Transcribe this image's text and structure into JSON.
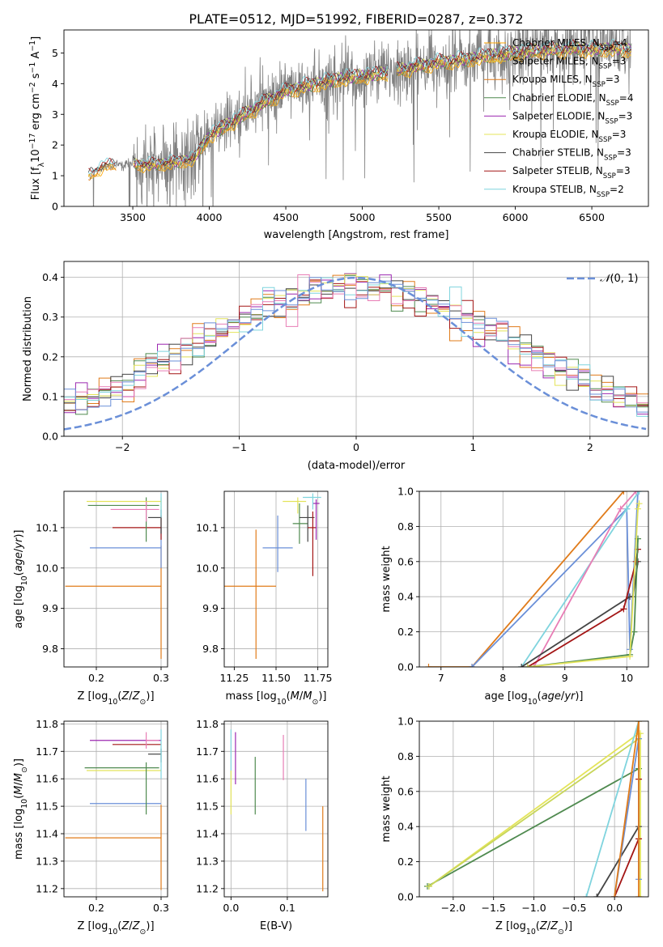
{
  "title": "PLATE=0512, MJD=51992, FIBERID=0287, z=0.372",
  "colors": {
    "Chabrier MILES": "#ffa500",
    "Salpeter MILES": "#e5c23c",
    "Kroupa MILES": "#e07b1a",
    "Chabrier ELODIE": "#4f8a4f",
    "Salpeter ELODIE": "#9b27b0",
    "Kroupa ELODIE": "#e4e45a",
    "Chabrier STELIB": "#444444",
    "Salpeter STELIB": "#a31515",
    "Kroupa STELIB": "#7fd4de",
    "extra_pink": "#e87db5",
    "extra_blue": "#6a8fd8",
    "extra_olive": "#c8d65a",
    "normal_curve": "#6a8fd8"
  },
  "chart_data": [
    {
      "id": "spectrum",
      "type": "line",
      "title": "PLATE=0512, MJD=51992, FIBERID=0287, z=0.372",
      "xlabel": "wavelength [Angstrom, rest frame]",
      "ylabel": "Flux [f_λ 10^-17 erg cm^-2 s^-1 A^-1]",
      "xlim": [
        3050,
        6870
      ],
      "ylim": [
        0,
        5.75
      ],
      "xticks": [
        3500,
        4000,
        4500,
        5000,
        5500,
        6000,
        6500
      ],
      "yticks": [
        0,
        1,
        2,
        3,
        4,
        5
      ],
      "legend_position": "upper right",
      "data_range": [
        3210,
        6760
      ],
      "model_anchors": {
        "x": [
          3210,
          3300,
          3400,
          3500,
          3600,
          3700,
          3800,
          3900,
          4000,
          4100,
          4200,
          4300,
          4400,
          4500,
          4600,
          4700,
          4800,
          4900,
          5000,
          5100,
          5200,
          5300,
          5400,
          5500,
          5600,
          5700,
          5800,
          5900,
          6000,
          6100,
          6200,
          6300,
          6400,
          6500,
          6600,
          6760
        ],
        "y": [
          1.0,
          1.3,
          1.35,
          1.4,
          1.35,
          1.4,
          1.45,
          1.55,
          2.3,
          2.6,
          2.9,
          3.2,
          3.5,
          3.75,
          3.9,
          4.0,
          4.1,
          4.2,
          4.25,
          4.3,
          4.4,
          4.5,
          4.6,
          4.7,
          4.75,
          4.8,
          4.9,
          4.95,
          5.0,
          5.05,
          5.1,
          5.1,
          5.15,
          5.1,
          5.15,
          5.1
        ]
      },
      "legend": [
        {
          "name": "Chabrier MILES",
          "nssp": "4"
        },
        {
          "name": "Salpeter MILES",
          "nssp": "3"
        },
        {
          "name": "Kroupa MILES",
          "nssp": "3"
        },
        {
          "name": "Chabrier ELODIE",
          "nssp": "4"
        },
        {
          "name": "Salpeter ELODIE",
          "nssp": "3"
        },
        {
          "name": "Kroupa ELODIE",
          "nssp": "3"
        },
        {
          "name": "Chabrier STELIB",
          "nssp": "3"
        },
        {
          "name": "Salpeter STELIB",
          "nssp": "3"
        },
        {
          "name": "Kroupa STELIB",
          "nssp": "2"
        }
      ]
    },
    {
      "id": "residuals",
      "type": "histogram",
      "xlabel": "(data-model)/error",
      "ylabel": "Normed distribution",
      "xlim": [
        -2.5,
        2.5
      ],
      "ylim": [
        0,
        0.44
      ],
      "xticks": [
        -2,
        -1,
        0,
        1,
        2
      ],
      "yticks": [
        0.0,
        0.1,
        0.2,
        0.3,
        0.4
      ],
      "grid": true,
      "legend_label": "N(0,1)",
      "bin_width": 0.1,
      "normal": {
        "mean": 0,
        "std": 1
      }
    },
    {
      "id": "age_vs_Z",
      "type": "errorbar",
      "xlabel": "Z [log10(Z/Z⊙)]",
      "ylabel": "age [log10(age/yr)]",
      "xlim": [
        0.15,
        0.31
      ],
      "ylim": [
        9.755,
        10.19
      ],
      "xticks": [
        0.2,
        0.3
      ],
      "yticks": [
        9.8,
        9.9,
        10.0,
        10.1
      ],
      "grid": true,
      "points": [
        {
          "series": "Kroupa MILES",
          "x": 0.3,
          "xerr": [
            0.148,
            0.0
          ],
          "y": 9.955,
          "yerr": [
            0.18,
            0.1
          ]
        },
        {
          "series": "extra_blue",
          "x": 0.3,
          "xerr": [
            0.11,
            0.0
          ],
          "y": 10.05,
          "yerr": [
            0.05,
            0.05
          ]
        },
        {
          "series": "Salpeter STELIB",
          "x": 0.3,
          "xerr": [
            0.075,
            0.0
          ],
          "y": 10.1,
          "yerr": [
            0.03,
            0.03
          ]
        },
        {
          "series": "Chabrier ELODIE",
          "x": 0.277,
          "xerr": [
            0.09,
            0.02
          ],
          "y": 10.155,
          "yerr": [
            0.09,
            0.02
          ]
        },
        {
          "series": "Kroupa ELODIE",
          "x": 0.3,
          "xerr": [
            0.115,
            0.0
          ],
          "y": 10.165,
          "yerr": [
            0.02,
            0.01
          ]
        },
        {
          "series": "extra_pink",
          "x": 0.277,
          "xerr": [
            0.055,
            0.02
          ],
          "y": 10.145,
          "yerr": [
            0.03,
            0.02
          ]
        },
        {
          "series": "Chabrier STELIB",
          "x": 0.3,
          "xerr": [
            0.02,
            0.0
          ],
          "y": 10.125,
          "yerr": [
            0.04,
            0.02
          ]
        },
        {
          "series": "Kroupa STELIB",
          "x": 0.3,
          "xerr": [
            0.0,
            0.0
          ],
          "y": 10.175,
          "yerr": [
            0.05,
            0.01
          ]
        }
      ]
    },
    {
      "id": "age_vs_mass",
      "type": "errorbar",
      "xlabel": "mass [log10(M/M⊙)]",
      "ylabel": "",
      "xlim": [
        11.19,
        11.81
      ],
      "ylim": [
        9.755,
        10.19
      ],
      "xticks": [
        11.25,
        11.5,
        11.75
      ],
      "yticks": [
        9.8,
        9.9,
        10.0,
        10.1
      ],
      "grid": true,
      "points": [
        {
          "series": "Kroupa MILES",
          "x": 11.38,
          "xerr": [
            0.19,
            0.12
          ],
          "y": 9.955,
          "yerr": [
            0.18,
            0.14
          ]
        },
        {
          "series": "extra_blue",
          "x": 11.51,
          "xerr": [
            0.09,
            0.09
          ],
          "y": 10.05,
          "yerr": [
            0.06,
            0.08
          ]
        },
        {
          "series": "Kroupa ELODIE",
          "x": 11.63,
          "xerr": [
            0.09,
            0.05
          ],
          "y": 10.165,
          "yerr": [
            0.03,
            0.01
          ]
        },
        {
          "series": "Chabrier ELODIE",
          "x": 11.64,
          "xerr": [
            0.04,
            0.05
          ],
          "y": 10.11,
          "yerr": [
            0.05,
            0.05
          ]
        },
        {
          "series": "Chabrier STELIB",
          "x": 11.69,
          "xerr": [
            0.05,
            0.04
          ],
          "y": 10.125,
          "yerr": [
            0.06,
            0.03
          ]
        },
        {
          "series": "Salpeter STELIB",
          "x": 11.72,
          "xerr": [
            0.03,
            0.02
          ],
          "y": 10.1,
          "yerr": [
            0.12,
            0.04
          ]
        },
        {
          "series": "Salpeter ELODIE",
          "x": 11.74,
          "xerr": [
            0.02,
            0.02
          ],
          "y": 10.16,
          "yerr": [
            0.09,
            0.01
          ]
        },
        {
          "series": "Kroupa STELIB",
          "x": 11.72,
          "xerr": [
            0.06,
            0.05
          ],
          "y": 10.175,
          "yerr": [
            0.03,
            0.01
          ]
        }
      ]
    },
    {
      "id": "cumweight_age",
      "type": "line",
      "xlabel": "age [log10(age/yr)]",
      "ylabel": "mass weight",
      "xlim": [
        6.65,
        10.35
      ],
      "ylim": [
        0,
        1.0
      ],
      "xticks": [
        7,
        8,
        9,
        10
      ],
      "yticks": [
        0.0,
        0.2,
        0.4,
        0.6,
        0.8,
        1.0
      ],
      "grid": true,
      "series": [
        {
          "name": "Kroupa MILES",
          "x": [
            6.8,
            7.5,
            9.95
          ],
          "y": [
            0.0,
            0.0,
            1.0
          ]
        },
        {
          "name": "extra_blue",
          "x": [
            7.5,
            10.0,
            10.05,
            10.18
          ],
          "y": [
            0.0,
            0.9,
            0.1,
            1.0
          ]
        },
        {
          "name": "Kroupa STELIB",
          "x": [
            8.3,
            10.0,
            10.2
          ],
          "y": [
            0.0,
            0.9,
            1.0
          ]
        },
        {
          "name": "extra_pink",
          "x": [
            8.5,
            9.9,
            10.15
          ],
          "y": [
            0.0,
            0.9,
            1.0
          ]
        },
        {
          "name": "Chabrier STELIB",
          "x": [
            8.3,
            10.05,
            10.1,
            10.18
          ],
          "y": [
            0.0,
            0.4,
            0.4,
            0.6
          ]
        },
        {
          "name": "Salpeter STELIB",
          "x": [
            8.4,
            9.95,
            10.15,
            10.18
          ],
          "y": [
            0.0,
            0.33,
            0.6,
            0.67
          ]
        },
        {
          "name": "Chabrier ELODIE",
          "x": [
            8.4,
            10.05,
            10.12,
            10.18
          ],
          "y": [
            0.0,
            0.07,
            0.2,
            0.73
          ]
        },
        {
          "name": "Kroupa ELODIE",
          "x": [
            8.4,
            10.05,
            10.18,
            10.2
          ],
          "y": [
            0.0,
            0.06,
            0.9,
            0.93
          ]
        }
      ]
    },
    {
      "id": "mass_vs_Z",
      "type": "errorbar",
      "xlabel": "Z [log10(Z/Z⊙)]",
      "ylabel": "mass [log10(M/M⊙)]",
      "xlim": [
        0.15,
        0.31
      ],
      "ylim": [
        11.17,
        11.81
      ],
      "xticks": [
        0.2,
        0.3
      ],
      "yticks": [
        11.2,
        11.3,
        11.4,
        11.5,
        11.6,
        11.7,
        11.8
      ],
      "grid": true,
      "points": [
        {
          "series": "Kroupa MILES",
          "x": 0.3,
          "xerr": [
            0.148,
            0.0
          ],
          "y": 11.385,
          "yerr": [
            0.19,
            0.12
          ]
        },
        {
          "series": "extra_blue",
          "x": 0.3,
          "xerr": [
            0.11,
            0.0
          ],
          "y": 11.51,
          "yerr": [
            0.0,
            0.0
          ]
        },
        {
          "series": "Kroupa ELODIE",
          "x": 0.3,
          "xerr": [
            0.115,
            0.0
          ],
          "y": 11.63,
          "yerr": [
            0.0,
            0.0
          ]
        },
        {
          "series": "Chabrier ELODIE",
          "x": 0.277,
          "xerr": [
            0.095,
            0.02
          ],
          "y": 11.64,
          "yerr": [
            0.17,
            0.02
          ]
        },
        {
          "series": "Salpeter STELIB",
          "x": 0.3,
          "xerr": [
            0.075,
            0.0
          ],
          "y": 11.725,
          "yerr": [
            0.0,
            0.0
          ]
        },
        {
          "series": "Salpeter ELODIE",
          "x": 0.3,
          "xerr": [
            0.11,
            0.0
          ],
          "y": 11.74,
          "yerr": [
            0.0,
            0.0
          ]
        },
        {
          "series": "Chabrier STELIB",
          "x": 0.3,
          "xerr": [
            0.02,
            0.0
          ],
          "y": 11.69,
          "yerr": [
            0.03,
            0.02
          ]
        },
        {
          "series": "extra_pink",
          "x": 0.277,
          "xerr": [
            0.0,
            0.02
          ],
          "y": 11.74,
          "yerr": [
            0.03,
            0.03
          ]
        },
        {
          "series": "Kroupa STELIB",
          "x": 0.3,
          "xerr": [
            0.0,
            0.0
          ],
          "y": 11.7,
          "yerr": [
            0.1,
            0.08
          ]
        }
      ]
    },
    {
      "id": "mass_vs_EBV",
      "type": "errorbar",
      "xlabel": "E(B-V)",
      "ylabel": "",
      "xlim": [
        -0.012,
        0.172
      ],
      "ylim": [
        11.17,
        11.81
      ],
      "xticks": [
        0.0,
        0.1
      ],
      "yticks": [
        11.2,
        11.3,
        11.4,
        11.5,
        11.6,
        11.7,
        11.8
      ],
      "grid": true,
      "points": [
        {
          "series": "Kroupa MILES",
          "x": 0.163,
          "y": 11.345,
          "yerr": [
            0.155,
            0.155
          ]
        },
        {
          "series": "extra_blue",
          "x": 0.133,
          "y": 11.51,
          "yerr": [
            0.1,
            0.09
          ]
        },
        {
          "series": "extra_pink",
          "x": 0.093,
          "y": 11.68,
          "yerr": [
            0.085,
            0.08
          ]
        },
        {
          "series": "Chabrier ELODIE",
          "x": 0.043,
          "y": 11.57,
          "yerr": [
            0.1,
            0.11
          ]
        },
        {
          "series": "Salpeter ELODIE",
          "x": 0.008,
          "y": 11.68,
          "yerr": [
            0.1,
            0.09
          ]
        },
        {
          "series": "Kroupa STELIB",
          "x": 0.0,
          "y": 11.7,
          "yerr": [
            0.1,
            0.08
          ]
        },
        {
          "series": "Kroupa ELODIE",
          "x": 0.0,
          "y": 11.55,
          "yerr": [
            0.08,
            0.08
          ]
        }
      ]
    },
    {
      "id": "cumweight_Z",
      "type": "line",
      "xlabel": "Z [log10(Z/Z⊙)]",
      "ylabel": "mass weight",
      "xlim": [
        -2.42,
        0.42
      ],
      "ylim": [
        0,
        1.0
      ],
      "xticks": [
        -2.0,
        -1.5,
        -1.0,
        -0.5,
        0.0
      ],
      "yticks": [
        0.0,
        0.2,
        0.4,
        0.6,
        0.8,
        1.0
      ],
      "grid": true,
      "series": [
        {
          "name": "Chabrier ELODIE",
          "x": [
            -2.32,
            0.3
          ],
          "y": [
            0.06,
            0.73
          ]
        },
        {
          "name": "Kroupa ELODIE",
          "x": [
            -2.3,
            0.3,
            0.32,
            0.32
          ],
          "y": [
            0.06,
            0.93,
            0.93,
            0.0
          ]
        },
        {
          "name": "extra_olive",
          "x": [
            -2.3,
            0.3
          ],
          "y": [
            0.06,
            0.9
          ]
        },
        {
          "name": "Kroupa STELIB",
          "x": [
            -0.35,
            0.3
          ],
          "y": [
            0.0,
            1.0
          ]
        },
        {
          "name": "Chabrier STELIB",
          "x": [
            -0.22,
            0.3
          ],
          "y": [
            0.0,
            0.4
          ]
        },
        {
          "name": "Salpeter STELIB",
          "x": [
            0.0,
            0.3,
            0.3
          ],
          "y": [
            0.0,
            0.33,
            0.67
          ]
        },
        {
          "name": "extra_blue",
          "x": [
            0.0,
            0.3,
            0.3
          ],
          "y": [
            0.0,
            0.9,
            0.1
          ]
        },
        {
          "name": "Kroupa MILES",
          "x": [
            0.0,
            0.3,
            0.3
          ],
          "y": [
            0.0,
            1.0,
            0.0
          ]
        }
      ]
    }
  ]
}
